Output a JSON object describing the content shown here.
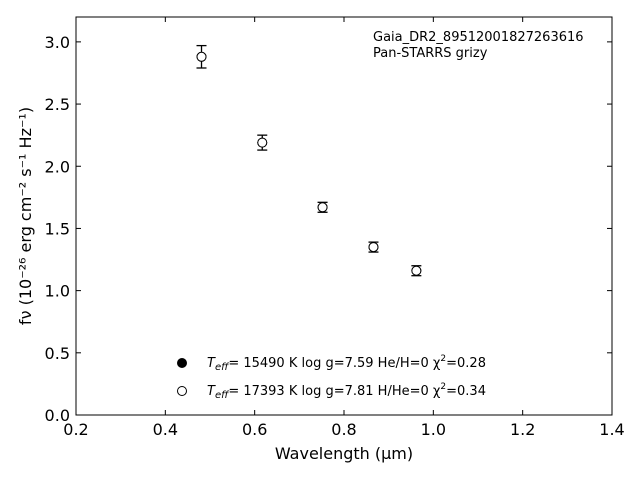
{
  "chart_data": {
    "type": "scatter",
    "annotation_lines": [
      "Gaia_DR2_89512001827263616",
      "Pan-STARRS grizy"
    ],
    "xlabel": "Wavelength (μm)",
    "ylabel": "fν (10⁻²⁶ erg cm⁻² s⁻¹ Hz⁻¹)",
    "xlim": [
      0.2,
      1.4
    ],
    "ylim": [
      0.0,
      3.2
    ],
    "x_ticks": [
      0.2,
      0.4,
      0.6,
      0.8,
      1.0,
      1.2,
      1.4
    ],
    "y_ticks": [
      0.0,
      0.5,
      1.0,
      1.5,
      2.0,
      2.5,
      3.0
    ],
    "x_tick_labels": [
      "0.2",
      "0.4",
      "0.6",
      "0.8",
      "1.0",
      "1.2",
      "1.4"
    ],
    "y_tick_labels": [
      "0.0",
      "0.5",
      "1.0",
      "1.5",
      "2.0",
      "2.5",
      "3.0"
    ],
    "grid": false,
    "legend_position": "lower-center",
    "series": [
      {
        "marker": "filled-circle",
        "color": "#000000",
        "legend": {
          "prefix": "T",
          "subscript": "eff",
          "text": "= 15490 K  log g=7.59  He/H=0  χ",
          "superscript": "2",
          "suffix": "=0.28"
        },
        "x": [
          0.481,
          0.617,
          0.752,
          0.866,
          0.962
        ],
        "y": [
          2.88,
          2.19,
          1.67,
          1.35,
          1.16
        ],
        "yerr": [
          0.09,
          0.06,
          0.04,
          0.04,
          0.04
        ]
      },
      {
        "marker": "open-circle",
        "color": "#000000",
        "legend": {
          "prefix": "T",
          "subscript": "eff",
          "text": "= 17393 K  log g=7.81  H/He=0  χ",
          "superscript": "2",
          "suffix": "=0.34"
        },
        "x": [
          0.481,
          0.617,
          0.752,
          0.866,
          0.962
        ],
        "y": [
          2.88,
          2.19,
          1.67,
          1.35,
          1.16
        ],
        "yerr": null
      }
    ]
  }
}
